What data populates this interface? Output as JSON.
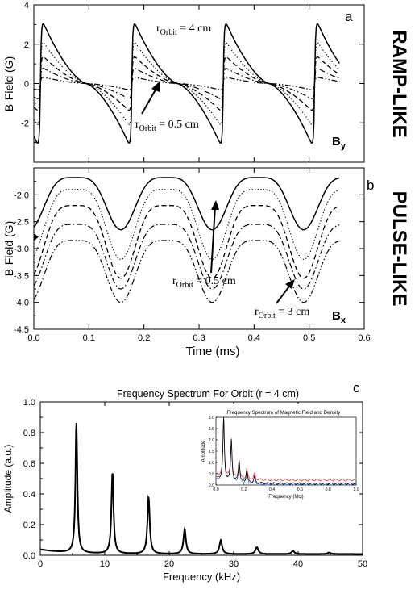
{
  "panel_a": {
    "letter": "a",
    "side_label": "RAMP-LIKE",
    "component_label": "B",
    "component_sub": "y",
    "annot_top": {
      "text": "r",
      "sub": "Orbit",
      "rest": " = 4 cm"
    },
    "annot_bottom": {
      "text": "r",
      "sub": "Orbit",
      "rest": " = 0.5 cm"
    }
  },
  "panel_b": {
    "letter": "b",
    "side_label": "PULSE-LIKE",
    "component_label": "B",
    "component_sub": "x",
    "annot_left": {
      "text": "r",
      "sub": "Orbit",
      "rest": " = 0.5 cm"
    },
    "annot_right": {
      "text": "r",
      "sub": "Orbit",
      "rest": " = 3 cm"
    }
  },
  "panel_c": {
    "letter": "c",
    "inset_title": "Frequency Spectrum of Magnetic Field and Density",
    "inset_xlabel": "Frequency (f/fci)",
    "inset_ylabel": "Amplitude"
  },
  "chart_data": [
    {
      "type": "line",
      "title": "",
      "xlabel": "",
      "ylabel": "B-Field (G)",
      "xlim": [
        0.0,
        0.6
      ],
      "ylim": [
        -4,
        4
      ],
      "yticks": [
        "4",
        "2",
        "0",
        "-2"
      ],
      "period_ms": 0.166,
      "series": [
        {
          "style": "solid",
          "amplitude": 3.35
        },
        {
          "style": "dotted",
          "amplitude": 2.3
        },
        {
          "style": "dashed",
          "amplitude": 1.5
        },
        {
          "style": "dashdot",
          "amplitude": 0.85
        },
        {
          "style": "dashdotdot",
          "amplitude": 0.35
        }
      ]
    },
    {
      "type": "line",
      "title": "",
      "xlabel": "Time (ms)",
      "ylabel": "B-Field (G)",
      "xlim": [
        0.0,
        0.6
      ],
      "ylim": [
        -4.5,
        -1.5
      ],
      "xticks": [
        "0.0",
        "0.1",
        "0.2",
        "0.3",
        "0.4",
        "0.5",
        "0.6"
      ],
      "yticks": [
        "-2.0",
        "-2.5",
        "-3.0",
        "-3.5",
        "-4.0",
        "-4.5"
      ],
      "period_ms": 0.166,
      "series": [
        {
          "style": "solid",
          "max": -1.68,
          "min": -2.65
        },
        {
          "style": "dotted",
          "max": -1.9,
          "min": -3.2
        },
        {
          "style": "dashed",
          "max": -2.2,
          "min": -3.55
        },
        {
          "style": "dashdot",
          "max": -2.55,
          "min": -3.75
        },
        {
          "style": "dashdotdot",
          "max": -2.85,
          "min": -4.0
        }
      ]
    },
    {
      "type": "line",
      "title": "Frequency Spectrum For Orbit (r = 4 cm)",
      "xlabel": "Frequency (kHz)",
      "ylabel": "Amplitude (a.u.)",
      "xlim": [
        0,
        50
      ],
      "ylim": [
        0.0,
        1.0
      ],
      "xticks": [
        "0",
        "10",
        "20",
        "30",
        "40",
        "50"
      ],
      "yticks": [
        "1.0",
        "0.8",
        "0.6",
        "0.4",
        "0.2",
        "0.0"
      ],
      "peaks": [
        {
          "x": 5.6,
          "y": 0.85
        },
        {
          "x": 11.2,
          "y": 0.53
        },
        {
          "x": 16.8,
          "y": 0.37
        },
        {
          "x": 22.4,
          "y": 0.16
        },
        {
          "x": 28.0,
          "y": 0.09
        },
        {
          "x": 33.6,
          "y": 0.045
        },
        {
          "x": 39.2,
          "y": 0.02
        },
        {
          "x": 44.8,
          "y": 0.01
        }
      ]
    },
    {
      "type": "line",
      "title": "Frequency Spectrum of Magnetic Field and Density",
      "xlabel": "Frequency (f/fci)",
      "ylabel": "Amplitude",
      "xlim": [
        0.0,
        1.0
      ],
      "ylim": [
        0.0,
        3.0
      ],
      "xticks": [
        "0.0",
        "0.2",
        "0.4",
        "0.6",
        "0.8",
        "1.0"
      ],
      "yticks": [
        "0.0",
        "0.5",
        "1.0",
        "1.5",
        "2.0",
        "2.5",
        "3.0"
      ],
      "series": [
        {
          "color": "#000000",
          "peaks": [
            [
              0.055,
              2.8
            ],
            [
              0.11,
              1.85
            ],
            [
              0.165,
              1.0
            ],
            [
              0.22,
              0.55
            ],
            [
              0.275,
              0.3
            ]
          ],
          "floor": 0.06
        },
        {
          "color": "#d02020",
          "peaks": [
            [
              0.055,
              2.5
            ],
            [
              0.11,
              1.6
            ],
            [
              0.165,
              0.8
            ],
            [
              0.22,
              0.45
            ],
            [
              0.275,
              0.25
            ]
          ],
          "floor": 0.22
        },
        {
          "color": "#2050d0",
          "peaks": [
            [
              0.055,
              2.6
            ],
            [
              0.11,
              1.75
            ],
            [
              0.165,
              0.95
            ],
            [
              0.22,
              0.5
            ],
            [
              0.275,
              0.28
            ]
          ],
          "floor": 0.03
        }
      ]
    }
  ]
}
